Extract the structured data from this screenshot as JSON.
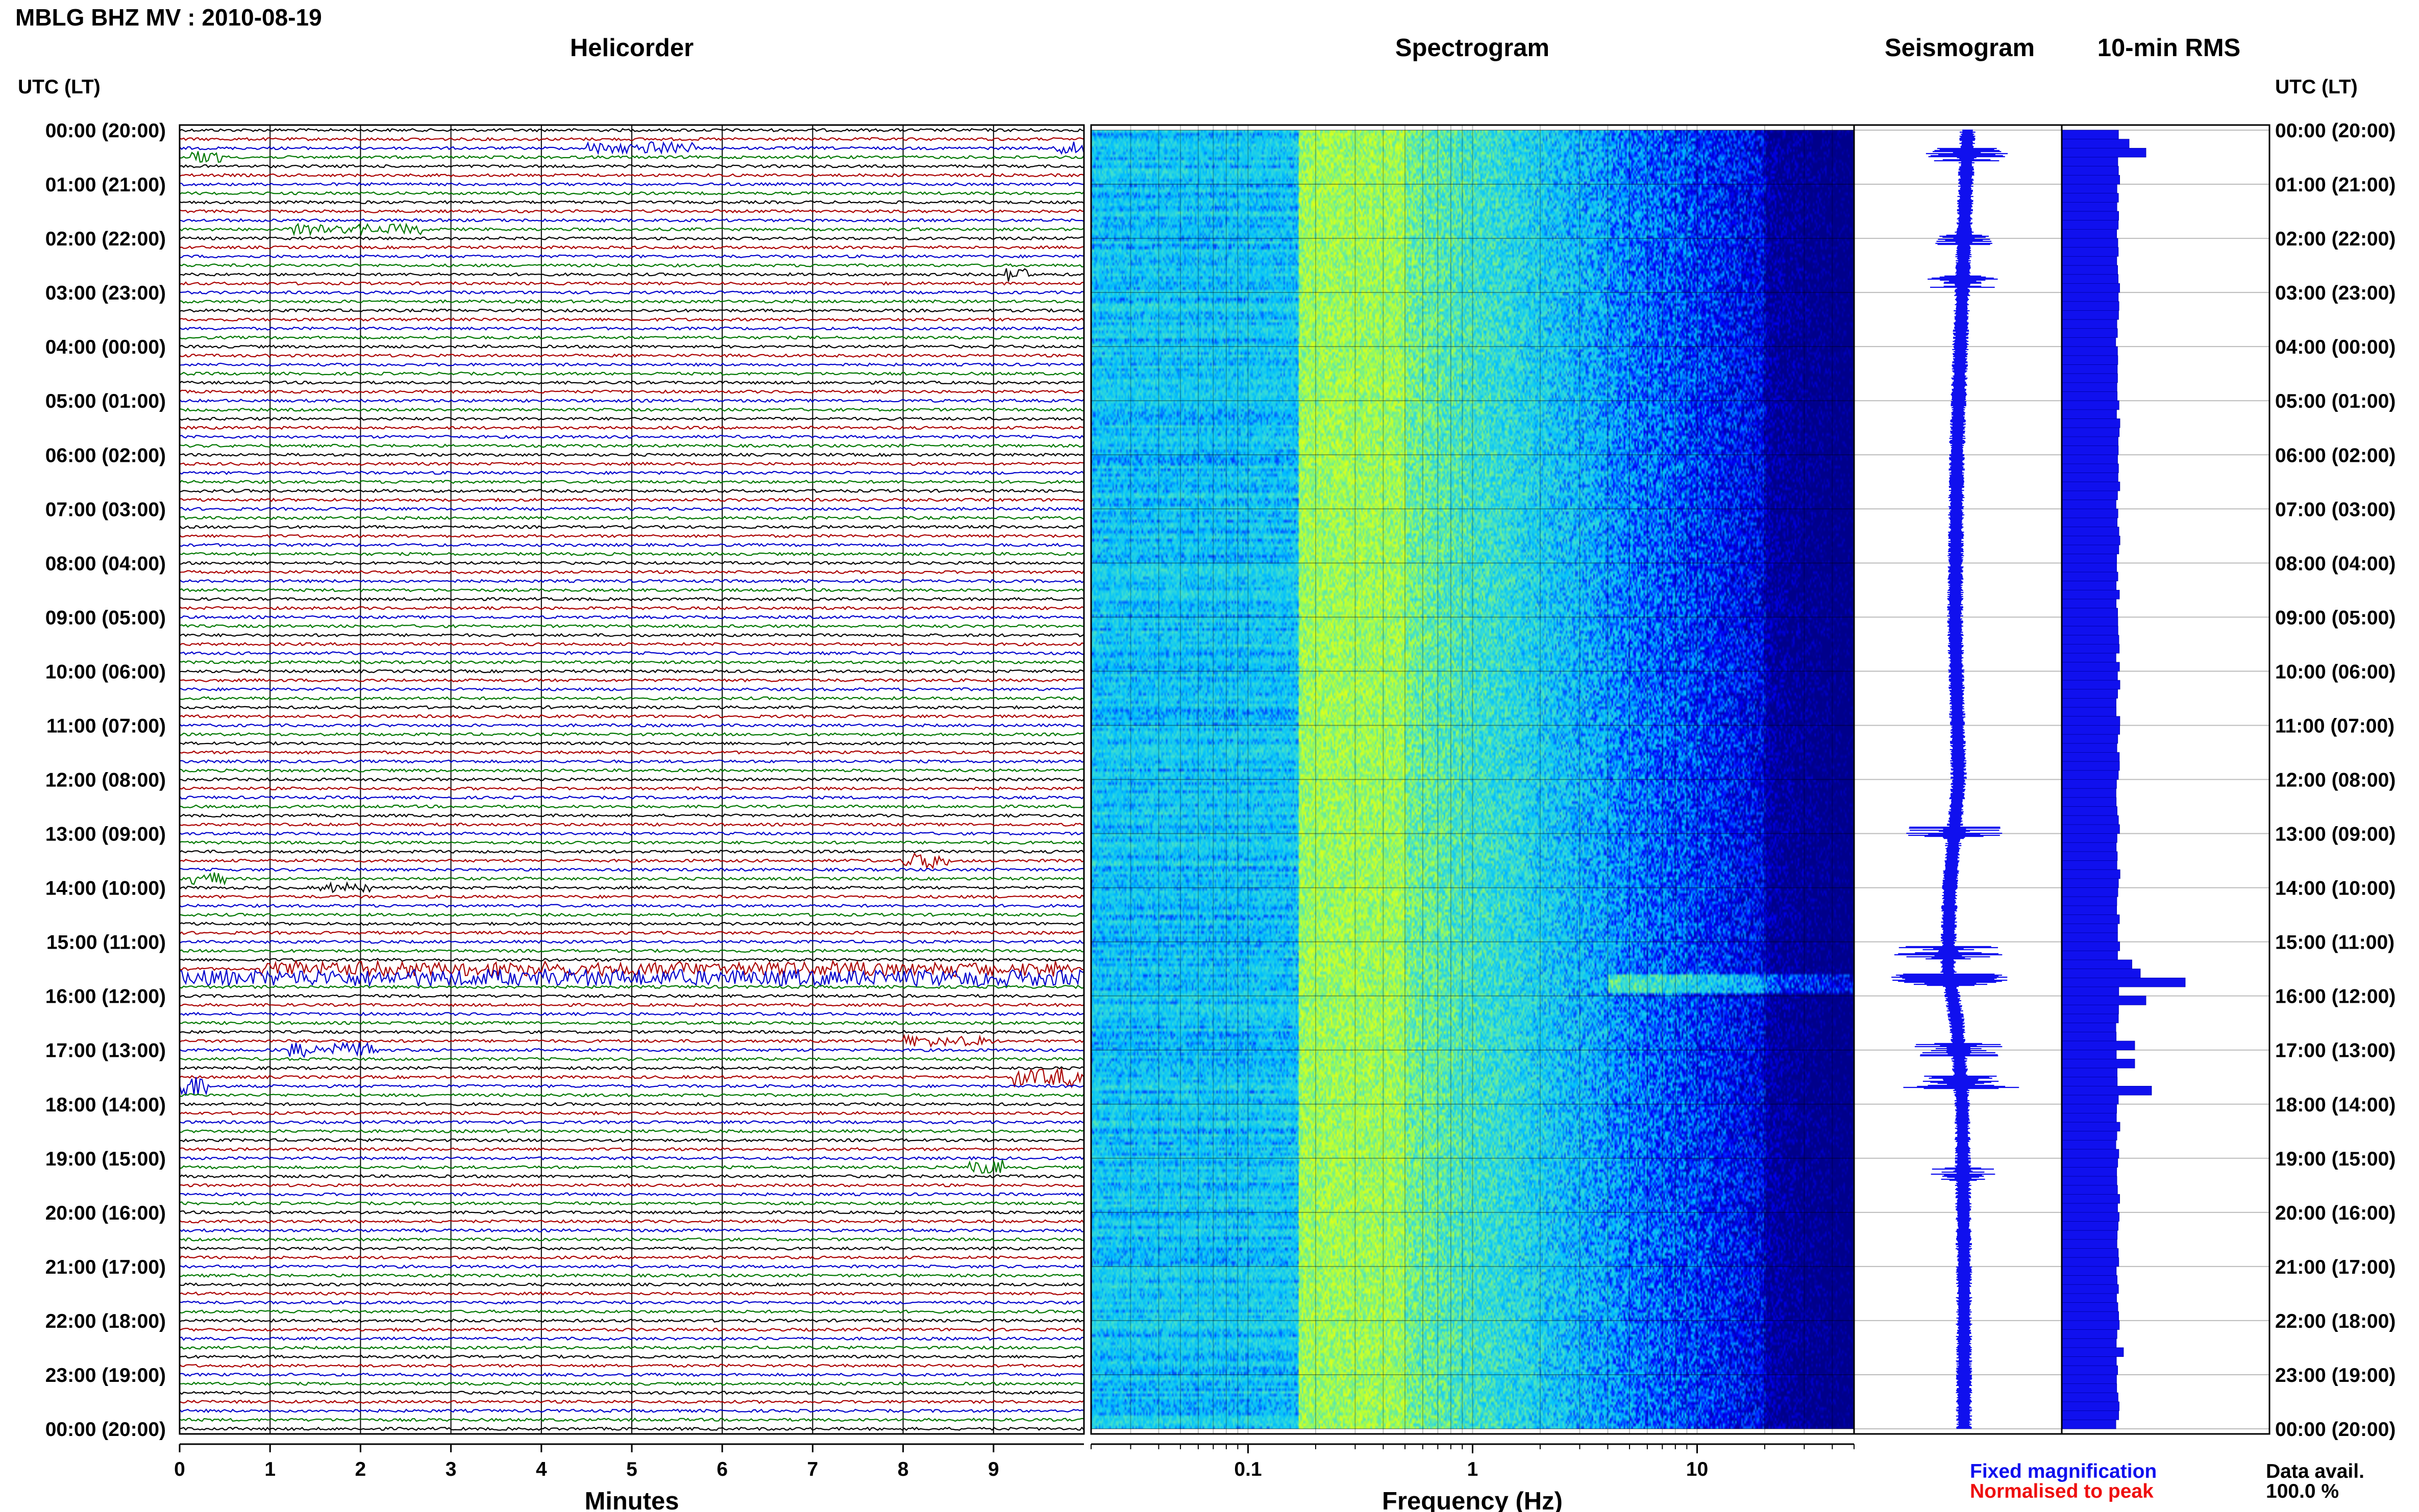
{
  "title": "MBLG BHZ MV : 2010-08-19",
  "panels": {
    "helicorder": "Helicorder",
    "spectrogram": "Spectrogram",
    "seismogram": "Seismogram",
    "rms": "10-min RMS"
  },
  "time_axis_label": "UTC (LT)",
  "time_ticks": [
    "00:00 (20:00)",
    "01:00 (21:00)",
    "02:00 (22:00)",
    "03:00 (23:00)",
    "04:00 (00:00)",
    "05:00 (01:00)",
    "06:00 (02:00)",
    "07:00 (03:00)",
    "08:00 (04:00)",
    "09:00 (05:00)",
    "10:00 (06:00)",
    "11:00 (07:00)",
    "12:00 (08:00)",
    "13:00 (09:00)",
    "14:00 (10:00)",
    "15:00 (11:00)",
    "16:00 (12:00)",
    "17:00 (13:00)",
    "18:00 (14:00)",
    "19:00 (15:00)",
    "20:00 (16:00)",
    "21:00 (17:00)",
    "22:00 (18:00)",
    "23:00 (19:00)",
    "00:00 (20:00)"
  ],
  "minutes_axis": {
    "label": "Minutes",
    "ticks": [
      "0",
      "1",
      "2",
      "3",
      "4",
      "5",
      "6",
      "7",
      "8",
      "9"
    ]
  },
  "frequency_axis": {
    "label": "Frequency (Hz)",
    "ticks": [
      "0.1",
      "1",
      "10"
    ]
  },
  "legend": {
    "fixed": "Fixed magnification",
    "fixed_color": "#1010ee",
    "normalised": "Normalised to peak",
    "normalised_color": "#ee1010"
  },
  "data_availability": {
    "label": "Data avail.",
    "value": "100.0 %"
  },
  "colors": {
    "trace_cycle": [
      "#000000",
      "#aa0000",
      "#0000cc",
      "#007700"
    ],
    "seismogram": "#1010ee",
    "rms": "#1010ee",
    "spectrogram_scale": [
      "#00008b",
      "#0000ff",
      "#00bfff",
      "#40e0d0",
      "#aaff44",
      "#ffff00"
    ]
  },
  "chart_data": [
    {
      "type": "line",
      "panel": "Helicorder",
      "xlabel": "Minutes",
      "xlim": [
        0,
        10
      ],
      "rows_per_hour": 6,
      "hours": 24,
      "events": [
        {
          "hour": 0.3,
          "minute": 4.5,
          "duration_min": 1.2,
          "amp": 2.5
        },
        {
          "hour": 0.3,
          "minute": 9.7,
          "duration_min": 0.4,
          "amp": 3
        },
        {
          "hour": 0.5,
          "minute": 0.1,
          "duration_min": 0.4,
          "amp": 3
        },
        {
          "hour": 1.9,
          "minute": 1.2,
          "duration_min": 1.5,
          "amp": 2
        },
        {
          "hour": 2.6,
          "minute": 9.1,
          "duration_min": 0.3,
          "amp": 4
        },
        {
          "hour": 13.5,
          "minute": 8.0,
          "duration_min": 0.5,
          "amp": 3
        },
        {
          "hour": 13.8,
          "minute": 0.1,
          "duration_min": 0.4,
          "amp": 3
        },
        {
          "hour": 14.0,
          "minute": 1.5,
          "duration_min": 0.6,
          "amp": 2
        },
        {
          "hour": 15.5,
          "minute": 0.9,
          "duration_min": 9.0,
          "amp": 3
        },
        {
          "hour": 15.7,
          "minute": 0.0,
          "duration_min": 10.0,
          "amp": 3.5
        },
        {
          "hour": 16.8,
          "minute": 8.0,
          "duration_min": 1.0,
          "amp": 2
        },
        {
          "hour": 17.0,
          "minute": 1.2,
          "duration_min": 1.0,
          "amp": 3
        },
        {
          "hour": 17.5,
          "minute": 9.2,
          "duration_min": 0.8,
          "amp": 4
        },
        {
          "hour": 17.6,
          "minute": 0.0,
          "duration_min": 0.3,
          "amp": 5
        },
        {
          "hour": 19.2,
          "minute": 8.7,
          "duration_min": 0.4,
          "amp": 3
        }
      ]
    },
    {
      "type": "heatmap",
      "panel": "Spectrogram",
      "xlabel": "Frequency (Hz)",
      "xscale": "log",
      "xlim": [
        0.02,
        50
      ],
      "ylim_hours": [
        0,
        24
      ]
    },
    {
      "type": "line",
      "panel": "Seismogram",
      "ylim_hours": [
        0,
        24
      ],
      "wander_points": [
        [
          0,
          0.4
        ],
        [
          3,
          0.1
        ],
        [
          6,
          -0.2
        ],
        [
          9,
          -0.3
        ],
        [
          12,
          -0.1
        ],
        [
          14,
          -0.6
        ],
        [
          15.5,
          -0.7
        ],
        [
          16.5,
          -0.2
        ],
        [
          18,
          0.1
        ],
        [
          21,
          0.2
        ],
        [
          24,
          0.2
        ]
      ],
      "bursts": [
        {
          "hour": 0.45,
          "amp": 0.6
        },
        {
          "hour": 2.0,
          "amp": 0.4
        },
        {
          "hour": 2.8,
          "amp": 0.5
        },
        {
          "hour": 13.0,
          "amp": 0.8
        },
        {
          "hour": 15.2,
          "amp": 0.9
        },
        {
          "hour": 15.7,
          "amp": 0.9
        },
        {
          "hour": 17.0,
          "amp": 0.7
        },
        {
          "hour": 17.6,
          "amp": 1.0
        },
        {
          "hour": 19.3,
          "amp": 0.5
        }
      ]
    },
    {
      "type": "bar",
      "panel": "10-min RMS",
      "orientation": "horizontal",
      "bin_minutes": 10,
      "base_level": 1.0,
      "peaks": [
        {
          "hour": 0.1,
          "value": 1.2
        },
        {
          "hour": 0.3,
          "value": 1.5
        },
        {
          "hour": 15.3,
          "value": 1.25
        },
        {
          "hour": 15.5,
          "value": 1.4
        },
        {
          "hour": 15.7,
          "value": 2.2
        },
        {
          "hour": 16.0,
          "value": 1.5
        },
        {
          "hour": 16.8,
          "value": 1.3
        },
        {
          "hour": 17.2,
          "value": 1.3
        },
        {
          "hour": 17.6,
          "value": 1.6
        },
        {
          "hour": 22.5,
          "value": 1.1
        }
      ]
    }
  ]
}
